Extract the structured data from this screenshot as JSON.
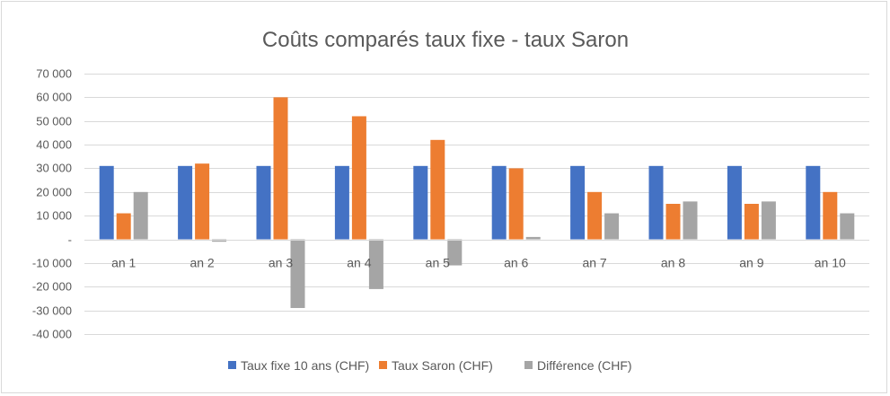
{
  "chart_data": {
    "type": "bar",
    "title": "Coûts comparés taux fixe - taux Saron",
    "xlabel": "",
    "ylabel": "",
    "ylim": [
      -40000,
      70000
    ],
    "yticks": [
      70000,
      60000,
      50000,
      40000,
      30000,
      20000,
      10000,
      0,
      -10000,
      -20000,
      -30000,
      -40000
    ],
    "ytick_labels": [
      "70 000",
      "60 000",
      "50 000",
      "40 000",
      "30 000",
      "20 000",
      "10 000",
      "-",
      "-10 000",
      "-20 000",
      "-30 000",
      "-40 000"
    ],
    "grid": true,
    "legend_position": "bottom",
    "categories": [
      "an 1",
      "an 2",
      "an 3",
      "an 4",
      "an 5",
      "an 6",
      "an 7",
      "an 8",
      "an 9",
      "an 10"
    ],
    "series": [
      {
        "name": "Taux fixe 10 ans (CHF)",
        "color": "#4472c4",
        "values": [
          31000,
          31000,
          31000,
          31000,
          31000,
          31000,
          31000,
          31000,
          31000,
          31000
        ]
      },
      {
        "name": "Taux Saron (CHF)",
        "color": "#ed7d31",
        "values": [
          11000,
          32000,
          60000,
          52000,
          42000,
          30000,
          20000,
          15000,
          15000,
          20000
        ]
      },
      {
        "name": "Différence (CHF)",
        "color": "#a5a5a5",
        "values": [
          20000,
          -1000,
          -29000,
          -21000,
          -11000,
          1000,
          11000,
          16000,
          16000,
          11000
        ]
      }
    ]
  }
}
